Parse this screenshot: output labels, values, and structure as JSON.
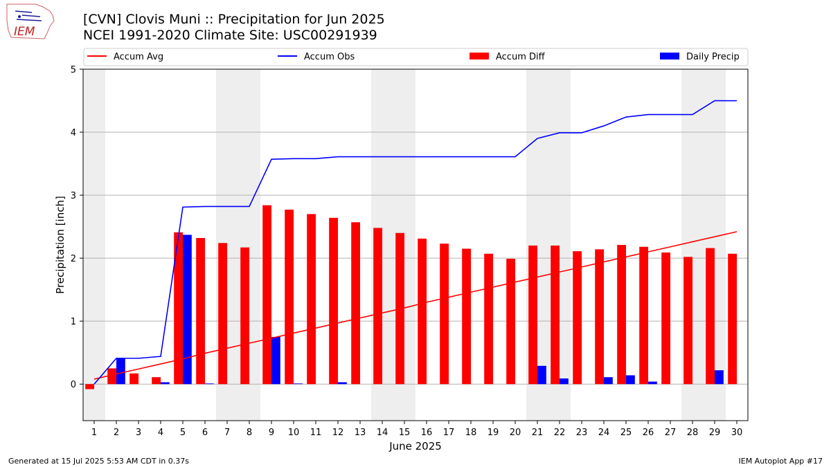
{
  "header": {
    "title_line1": "[CVN] Clovis Muni :: Precipitation for Jun 2025",
    "title_line2": "NCEI 1991-2020 Climate Site: USC00291939"
  },
  "logo": {
    "text": "IEM"
  },
  "footer": {
    "generated": "Generated at 15 Jul 2025 5:53 AM CDT in 0.37s",
    "app": "IEM Autoplot App #17"
  },
  "colors": {
    "avg": "#ff0000",
    "obs": "#0000ff",
    "diff": "#ff0000",
    "daily": "#0000ff",
    "weekend_band": "#eeeeee",
    "grid": "#b0b0b0"
  },
  "chart_data": {
    "type": "bar",
    "xlabel": "June 2025",
    "ylabel": "Precipitation [inch]",
    "ylim": [
      -0.58,
      5
    ],
    "yticks": [
      0,
      1,
      2,
      3,
      4,
      5
    ],
    "xlim": [
      0.5,
      30.5
    ],
    "grid": "horizontal",
    "legend_position": "top",
    "legend": [
      "Accum Avg",
      "Accum Obs",
      "Accum Diff",
      "Daily Precip"
    ],
    "shaded_days": [
      [
        0.5,
        1.5
      ],
      [
        6.5,
        8.5
      ],
      [
        13.5,
        15.5
      ],
      [
        20.5,
        22.5
      ],
      [
        27.5,
        29.5
      ]
    ],
    "days": [
      1,
      2,
      3,
      4,
      5,
      6,
      7,
      8,
      9,
      10,
      11,
      12,
      13,
      14,
      15,
      16,
      17,
      18,
      19,
      20,
      21,
      22,
      23,
      24,
      25,
      26,
      27,
      28,
      29,
      30
    ],
    "series": [
      {
        "name": "Accum Avg",
        "kind": "line",
        "values": [
          0.08,
          0.16,
          0.24,
          0.32,
          0.4,
          0.49,
          0.57,
          0.65,
          0.73,
          0.81,
          0.89,
          0.97,
          1.05,
          1.13,
          1.21,
          1.3,
          1.38,
          1.46,
          1.54,
          1.62,
          1.7,
          1.78,
          1.86,
          1.94,
          2.02,
          2.1,
          2.18,
          2.26,
          2.34,
          2.42
        ]
      },
      {
        "name": "Accum Obs",
        "kind": "line",
        "values": [
          0.0,
          0.41,
          0.41,
          0.44,
          2.81,
          2.82,
          2.82,
          2.82,
          3.57,
          3.58,
          3.58,
          3.61,
          3.61,
          3.61,
          3.61,
          3.61,
          3.61,
          3.61,
          3.61,
          3.61,
          3.9,
          3.99,
          3.99,
          4.1,
          4.24,
          4.28,
          4.28,
          4.28,
          4.5,
          4.5
        ]
      },
      {
        "name": "Accum Diff",
        "kind": "bar",
        "values": [
          -0.08,
          0.25,
          0.17,
          0.11,
          2.41,
          2.32,
          2.24,
          2.17,
          2.84,
          2.77,
          2.7,
          2.64,
          2.57,
          2.48,
          2.4,
          2.31,
          2.23,
          2.15,
          2.07,
          1.99,
          2.2,
          2.2,
          2.11,
          2.14,
          2.21,
          2.18,
          2.09,
          2.02,
          2.16,
          2.07
        ]
      },
      {
        "name": "Daily Precip",
        "kind": "bar",
        "values": [
          0.0,
          0.41,
          0.0,
          0.03,
          2.37,
          0.01,
          0.0,
          0.0,
          0.75,
          0.01,
          0.0,
          0.03,
          0.0,
          0.0,
          0.0,
          0.0,
          0.0,
          0.0,
          0.0,
          0.0,
          0.29,
          0.09,
          0.0,
          0.11,
          0.14,
          0.04,
          0.0,
          0.0,
          0.22,
          0.0
        ]
      }
    ]
  }
}
